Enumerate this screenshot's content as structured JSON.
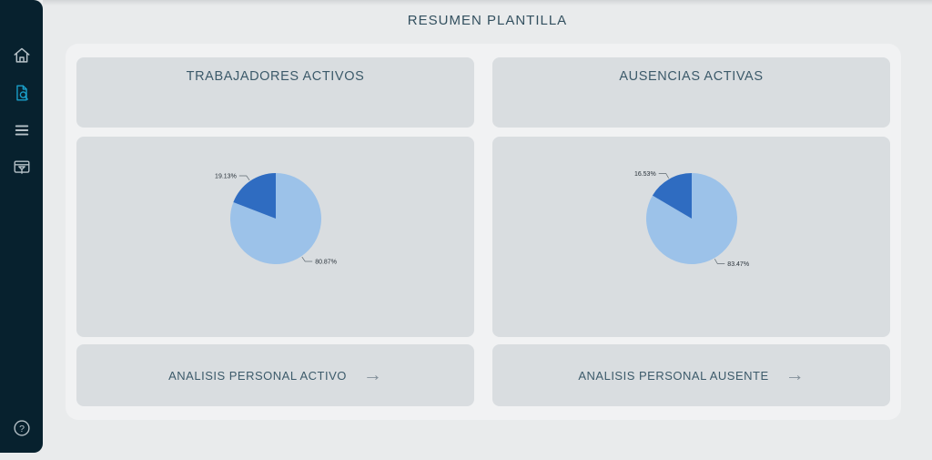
{
  "app": {
    "title": "RESUMEN PLANTILLA"
  },
  "colors": {
    "sidebar_bg": "#07212e",
    "accent": "#1aa0ca",
    "icon_gray": "#b7c2c8",
    "content_bg": "#e9ebec",
    "container_bg": "#f1f2f3",
    "card_bg": "#d9dde0",
    "heading_text": "#3c5a6a",
    "pie_dark_blue": "#2f6cc1",
    "pie_light_blue": "#9cc2e9"
  },
  "sidebar": {
    "items": [
      {
        "id": "home",
        "icon": "home-icon",
        "active": false
      },
      {
        "id": "summary-report",
        "icon": "document-search-icon",
        "active": true
      },
      {
        "id": "menu",
        "icon": "menu-icon",
        "active": false
      },
      {
        "id": "kiosk-filter",
        "icon": "filter-window-icon",
        "active": false
      }
    ],
    "help": {
      "id": "help",
      "icon": "help-icon",
      "glyph": "?"
    }
  },
  "icons": {
    "arrow_right": "→"
  },
  "panels": [
    {
      "title": "TRABAJADORES ACTIVOS",
      "action_label": "ANALISIS PERSONAL ACTIVO"
    },
    {
      "title": "AUSENCIAS ACTIVAS",
      "action_label": "ANALISIS PERSONAL AUSENTE"
    }
  ],
  "chart_data": [
    {
      "type": "pie",
      "title": "TRABAJADORES ACTIVOS",
      "slices": [
        {
          "label": "80.87%",
          "value": 80.87,
          "color": "#9cc2e9",
          "name": "light-blue-majority"
        },
        {
          "label": "19.13%",
          "value": 19.13,
          "color": "#2f6cc1",
          "name": "dark-blue-minority"
        }
      ],
      "start_angle_deg": 0,
      "direction": "clockwise",
      "legend": "none",
      "labels": "outside-leader-lines"
    },
    {
      "type": "pie",
      "title": "AUSENCIAS ACTIVAS",
      "slices": [
        {
          "label": "83.47%",
          "value": 83.47,
          "color": "#9cc2e9",
          "name": "light-blue-majority"
        },
        {
          "label": "16.53%",
          "value": 16.53,
          "color": "#2f6cc1",
          "name": "dark-blue-minority"
        }
      ],
      "start_angle_deg": 0,
      "direction": "clockwise",
      "legend": "none",
      "labels": "outside-leader-lines"
    }
  ]
}
